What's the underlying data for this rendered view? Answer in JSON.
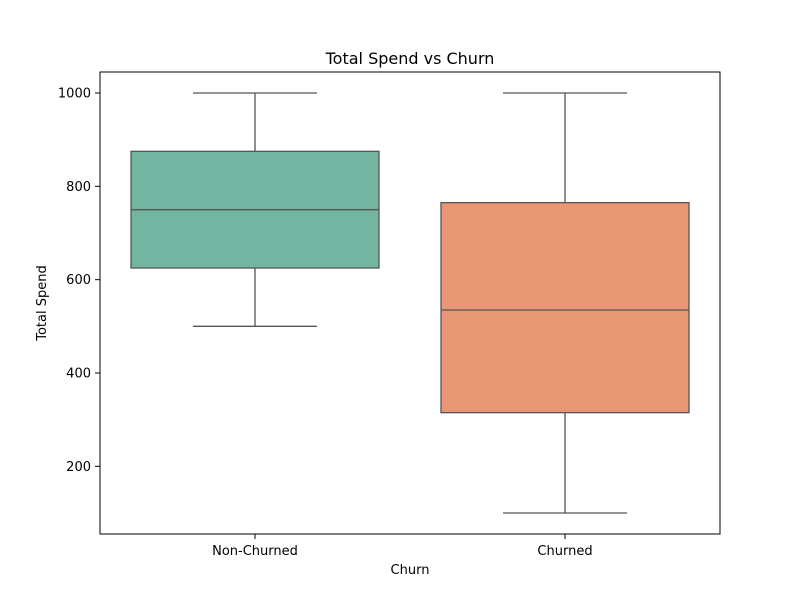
{
  "chart_data": {
    "type": "boxplot",
    "title": "Total Spend vs Churn",
    "xlabel": "Churn",
    "ylabel": "Total Spend",
    "categories": [
      "Non-Churned",
      "Churned"
    ],
    "ylim": [
      55,
      1045
    ],
    "yticks": [
      200,
      400,
      600,
      800,
      1000
    ],
    "grid": false,
    "legend": "none",
    "boxes": [
      {
        "category": "Non-Churned",
        "whisker_low": 500,
        "q1": 625,
        "median": 750,
        "q3": 875,
        "whisker_high": 1000,
        "color": "#72b6a1"
      },
      {
        "category": "Churned",
        "whisker_low": 100,
        "q1": 315,
        "median": 535,
        "q3": 765,
        "whisker_high": 1000,
        "color": "#e99675"
      }
    ],
    "colors": {
      "box_edge": "#555555",
      "axes": "#000000"
    }
  }
}
